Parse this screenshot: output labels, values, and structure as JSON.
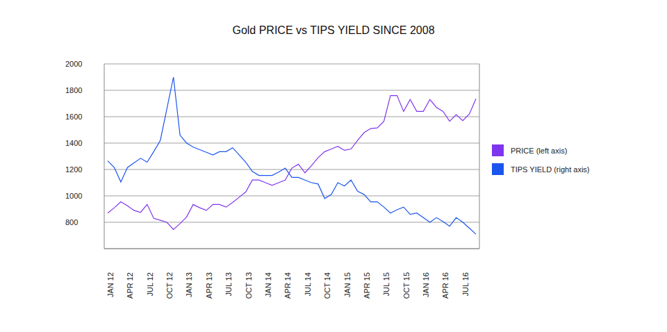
{
  "chart_data": {
    "type": "line",
    "title": "Gold PRICE vs TIPS YIELD SINCE 2008",
    "categories": [
      "JAN 12",
      null,
      null,
      "APR 12",
      null,
      null,
      "JUL 12",
      null,
      null,
      "OCT 12",
      null,
      null,
      "JAN 13",
      null,
      null,
      "APR 13",
      null,
      null,
      "JUL 13",
      null,
      null,
      "OCT 13",
      null,
      null,
      "JAN 14",
      null,
      null,
      "APR 14",
      null,
      null,
      "JUL 14",
      null,
      null,
      "OCT 14",
      null,
      null,
      "JAN 15",
      null,
      null,
      "APR 15",
      null,
      null,
      "JUL 15",
      null,
      null,
      "OCT 15",
      null,
      null,
      "JAN 16",
      null,
      null,
      "APR 16",
      null,
      null,
      "JUL 16",
      null,
      null
    ],
    "series": [
      {
        "name": "PRICE (left axis)",
        "color": "#7f35ee",
        "values": [
          870,
          910,
          955,
          925,
          890,
          875,
          935,
          830,
          815,
          800,
          745,
          790,
          840,
          935,
          910,
          890,
          935,
          935,
          915,
          950,
          990,
          1030,
          1120,
          1120,
          1100,
          1080,
          1100,
          1120,
          1210,
          1240,
          1175,
          1230,
          1290,
          1335,
          1355,
          1375,
          1345,
          1355,
          1420,
          1480,
          1510,
          1515,
          1565,
          1760,
          1760,
          1640,
          1730,
          1640,
          1640,
          1730,
          1670,
          1640,
          1565,
          1615,
          1570,
          1620,
          1735
        ]
      },
      {
        "name": "TIPS YIELD (right axis)",
        "color": "#1a55ee",
        "axis": "y2",
        "values": [
          1265,
          1215,
          1105,
          1215,
          1250,
          1285,
          1255,
          1335,
          1420,
          1660,
          1900,
          1460,
          1400,
          1370,
          1350,
          1330,
          1310,
          1335,
          1335,
          1365,
          1310,
          1255,
          1185,
          1155,
          1155,
          1155,
          1180,
          1210,
          1140,
          1140,
          1120,
          1100,
          1090,
          980,
          1010,
          1100,
          1075,
          1120,
          1035,
          1010,
          955,
          955,
          915,
          870,
          895,
          915,
          860,
          870,
          835,
          800,
          835,
          805,
          770,
          835,
          800,
          755,
          710
        ]
      }
    ],
    "ylim": [
      600,
      2000
    ],
    "yticks": [
      800,
      1000,
      1200,
      1400,
      1600,
      1800,
      2000
    ],
    "y2lim": [
      600,
      2000
    ],
    "y2ticks": [],
    "grid": true,
    "legend": "right"
  }
}
